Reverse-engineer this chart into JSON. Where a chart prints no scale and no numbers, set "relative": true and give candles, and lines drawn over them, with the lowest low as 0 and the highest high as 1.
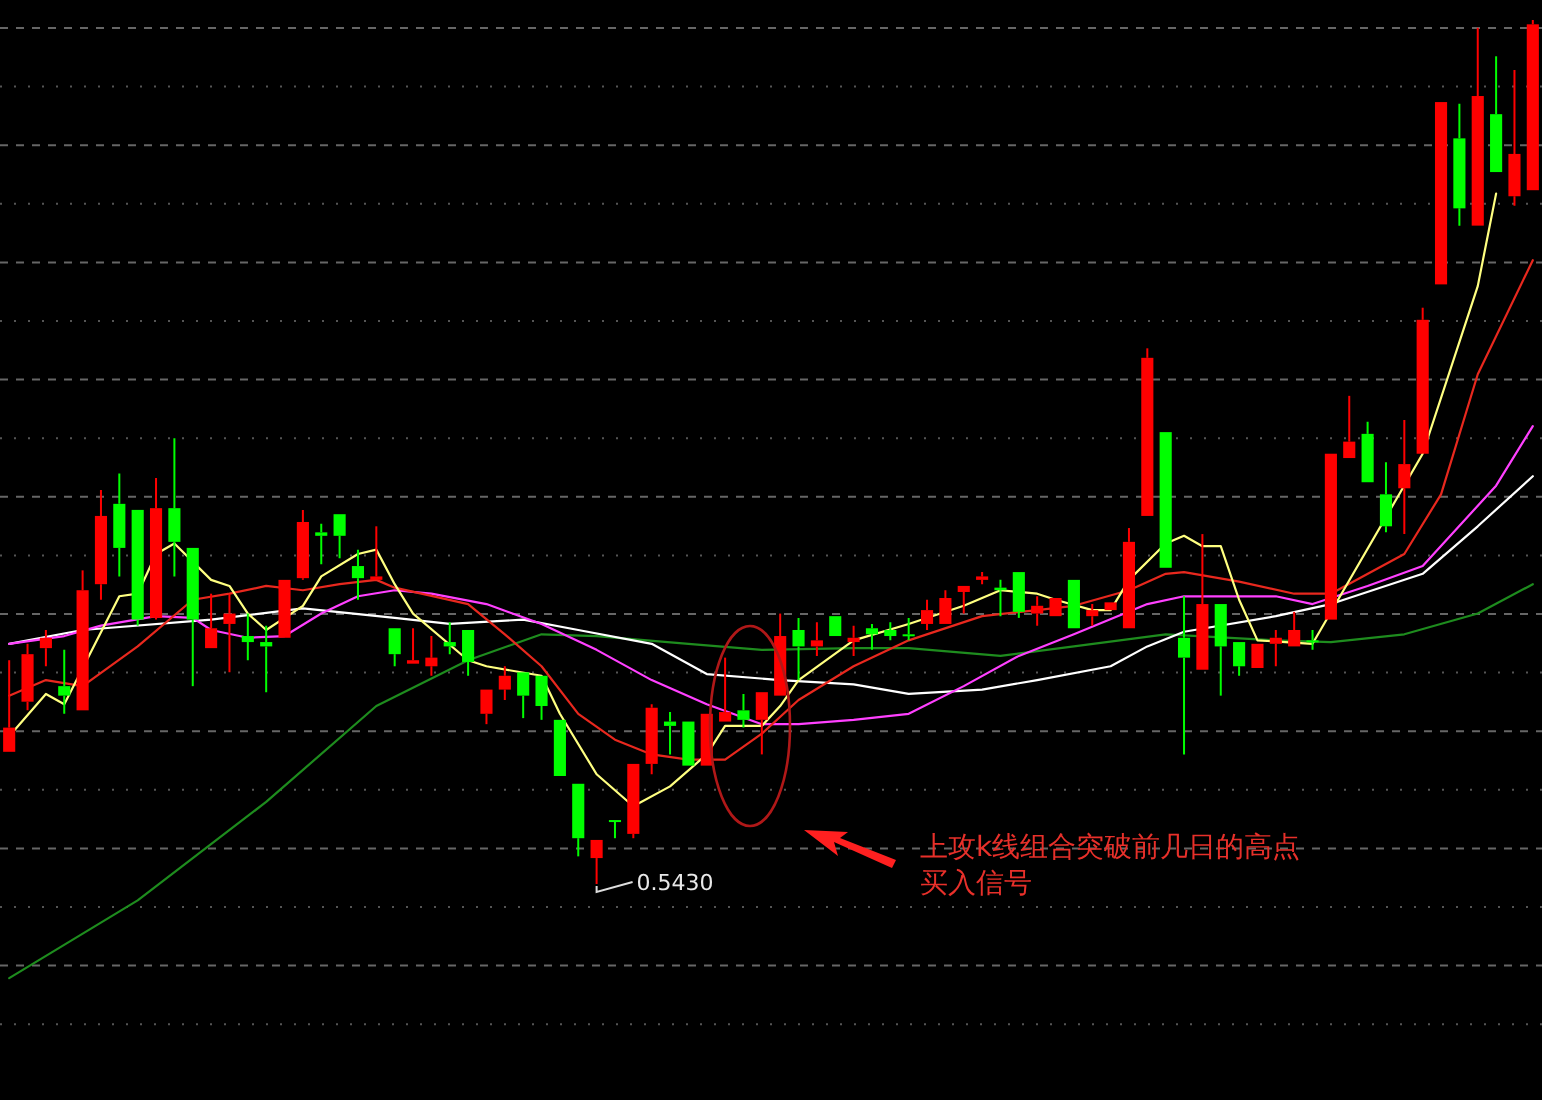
{
  "chart_data": {
    "type": "candlestick",
    "relative": true,
    "grid": true,
    "categories": [
      null,
      null,
      null,
      null,
      null,
      null,
      null,
      null,
      null,
      null,
      null,
      null,
      null,
      null,
      null,
      null,
      null,
      null,
      null,
      null,
      null,
      null,
      null,
      null,
      null,
      null,
      null,
      null,
      null,
      null,
      null,
      null,
      null,
      null,
      null,
      null,
      null,
      null,
      null,
      null,
      null,
      null,
      null,
      null,
      null,
      null,
      null,
      null,
      null,
      null,
      null,
      null,
      null,
      null,
      null,
      null,
      null,
      null,
      null,
      null,
      null,
      null,
      null,
      null,
      null,
      null,
      null,
      null,
      null,
      null,
      null,
      null,
      null,
      null,
      null,
      null,
      null,
      null,
      null,
      null,
      null,
      null,
      null,
      null
    ],
    "ohlc": [
      [
        0.153,
        0.259,
        0.153,
        0.181
      ],
      [
        0.211,
        0.278,
        0.201,
        0.266
      ],
      [
        0.273,
        0.294,
        0.252,
        0.285
      ],
      [
        0.229,
        0.271,
        0.197,
        0.218
      ],
      [
        0.201,
        0.363,
        0.201,
        0.34
      ],
      [
        0.347,
        0.456,
        0.329,
        0.426
      ],
      [
        0.44,
        0.475,
        0.356,
        0.389
      ],
      [
        0.433,
        0.433,
        0.299,
        0.306
      ],
      [
        0.308,
        0.47,
        0.306,
        0.435
      ],
      [
        0.435,
        0.516,
        0.356,
        0.396
      ],
      [
        0.389,
        0.389,
        0.229,
        0.306
      ],
      [
        0.273,
        0.336,
        0.273,
        0.296
      ],
      [
        0.301,
        0.336,
        0.245,
        0.313
      ],
      [
        0.287,
        0.313,
        0.259,
        0.28
      ],
      [
        0.28,
        0.299,
        0.222,
        0.275
      ],
      [
        0.285,
        0.352,
        0.285,
        0.352
      ],
      [
        0.354,
        0.433,
        0.352,
        0.419
      ],
      [
        0.407,
        0.417,
        0.37,
        0.403
      ],
      [
        0.428,
        0.428,
        0.377,
        0.403
      ],
      [
        0.368,
        0.387,
        0.329,
        0.354
      ],
      [
        0.352,
        0.414,
        0.352,
        0.356
      ],
      [
        0.296,
        0.296,
        0.252,
        0.266
      ],
      [
        0.255,
        0.296,
        0.255,
        0.259
      ],
      [
        0.252,
        0.287,
        0.241,
        0.262
      ],
      [
        0.28,
        0.303,
        0.266,
        0.275
      ],
      [
        0.294,
        0.294,
        0.241,
        0.257
      ],
      [
        0.197,
        0.225,
        0.185,
        0.225
      ],
      [
        0.225,
        0.252,
        0.213,
        0.241
      ],
      [
        0.245,
        0.245,
        0.192,
        0.218
      ],
      [
        0.241,
        0.241,
        0.19,
        0.206
      ],
      [
        0.19,
        0.19,
        0.125,
        0.125
      ],
      [
        0.116,
        0.116,
        0.032,
        0.053
      ],
      [
        0.03,
        0.051,
        0,
        0.051
      ],
      [
        0.074,
        0.074,
        0.053,
        0.072
      ],
      [
        0.058,
        0.139,
        0.053,
        0.139
      ],
      [
        0.139,
        0.208,
        0.127,
        0.204
      ],
      [
        0.188,
        0.199,
        0.15,
        0.183
      ],
      [
        0.188,
        0.188,
        0.137,
        0.137
      ],
      [
        0.137,
        0.197,
        0.137,
        0.197
      ],
      [
        0.188,
        0.262,
        0.188,
        0.199
      ],
      [
        0.201,
        0.22,
        0.181,
        0.19
      ],
      [
        0.19,
        0.222,
        0.15,
        0.222
      ],
      [
        0.218,
        0.313,
        0.218,
        0.287
      ],
      [
        0.294,
        0.308,
        0.236,
        0.275
      ],
      [
        0.275,
        0.303,
        0.264,
        0.282
      ],
      [
        0.31,
        0.31,
        0.287,
        0.287
      ],
      [
        0.28,
        0.299,
        0.264,
        0.285
      ],
      [
        0.296,
        0.301,
        0.271,
        0.289
      ],
      [
        0.294,
        0.303,
        0.282,
        0.287
      ],
      [
        0.289,
        0.308,
        0.282,
        0.287
      ],
      [
        0.301,
        0.329,
        0.294,
        0.317
      ],
      [
        0.301,
        0.34,
        0.301,
        0.331
      ],
      [
        0.338,
        0.345,
        0.313,
        0.345
      ],
      [
        0.352,
        0.361,
        0.347,
        0.356
      ],
      [
        0.343,
        0.352,
        0.31,
        0.34
      ],
      [
        0.361,
        0.361,
        0.308,
        0.315
      ],
      [
        0.313,
        0.333,
        0.299,
        0.322
      ],
      [
        0.31,
        0.331,
        0.31,
        0.331
      ],
      [
        0.352,
        0.352,
        0.296,
        0.296
      ],
      [
        0.31,
        0.324,
        0.299,
        0.317
      ],
      [
        0.317,
        0.326,
        0.317,
        0.326
      ],
      [
        0.296,
        0.412,
        0.296,
        0.396
      ],
      [
        0.426,
        0.62,
        0.426,
        0.609
      ],
      [
        0.523,
        0.523,
        0.366,
        0.366
      ],
      [
        0.285,
        0.333,
        0.15,
        0.262
      ],
      [
        0.248,
        0.405,
        0.248,
        0.324
      ],
      [
        0.324,
        0.324,
        0.218,
        0.275
      ],
      [
        0.28,
        0.28,
        0.241,
        0.252
      ],
      [
        0.25,
        0.278,
        0.25,
        0.278
      ],
      [
        0.278,
        0.294,
        0.252,
        0.285
      ],
      [
        0.275,
        0.315,
        0.275,
        0.294
      ],
      [
        0.282,
        0.294,
        0.271,
        0.28
      ],
      [
        0.306,
        0.498,
        0.306,
        0.498
      ],
      [
        0.493,
        0.565,
        0.493,
        0.512
      ],
      [
        0.521,
        0.535,
        0.465,
        0.465
      ],
      [
        0.451,
        0.488,
        0.407,
        0.414
      ],
      [
        0.458,
        0.537,
        0.405,
        0.486
      ],
      [
        0.498,
        0.667,
        0.498,
        0.653
      ],
      [
        0.694,
        0.905,
        0.694,
        0.905
      ],
      [
        0.863,
        0.903,
        0.762,
        0.782
      ],
      [
        0.762,
        0.991,
        0.762,
        0.912
      ],
      [
        0.891,
        0.958,
        0.824,
        0.824
      ],
      [
        0.796,
        0.942,
        0.785,
        0.845
      ],
      [
        0.803,
        1,
        0.803,
        0.995
      ]
    ],
    "colors": [
      "#ff0000",
      "#ff0000",
      "#ff0000",
      "#00ff00",
      "#ff0000",
      "#ff0000",
      "#00ff00",
      "#00ff00",
      "#ff0000",
      "#00ff00",
      "#00ff00",
      "#ff0000",
      "#ff0000",
      "#00ff00",
      "#00ff00",
      "#ff0000",
      "#ff0000",
      "#00ff00",
      "#00ff00",
      "#00ff00",
      "#ff0000",
      "#00ff00",
      "#ff0000",
      "#ff0000",
      "#00ff00",
      "#00ff00",
      "#ff0000",
      "#ff0000",
      "#00ff00",
      "#00ff00",
      "#00ff00",
      "#00ff00",
      "#ff0000",
      "#00ff00",
      "#ff0000",
      "#ff0000",
      "#00ff00",
      "#00ff00",
      "#ff0000",
      "#ff0000",
      "#00ff00",
      "#ff0000",
      "#ff0000",
      "#00ff00",
      "#ff0000",
      "#00ff00",
      "#ff0000",
      "#00ff00",
      "#00ff00",
      "#00ff00",
      "#ff0000",
      "#ff0000",
      "#ff0000",
      "#ff0000",
      "#00ff00",
      "#00ff00",
      "#ff0000",
      "#ff0000",
      "#00ff00",
      "#ff0000",
      "#ff0000",
      "#ff0000",
      "#ff0000",
      "#00ff00",
      "#00ff00",
      "#ff0000",
      "#00ff00",
      "#00ff00",
      "#ff0000",
      "#ff0000",
      "#ff0000",
      "#00ff00",
      "#ff0000",
      "#ff0000",
      "#00ff00",
      "#00ff00",
      "#ff0000",
      "#ff0000",
      "#ff0000",
      "#00ff00",
      "#ff0000",
      "#00ff00",
      "#ff0000",
      "#ff0000"
    ],
    "series": [
      {
        "type": "line",
        "color": "#1e8c1e",
        "values": [
          -0.109,
          null,
          null,
          null,
          null,
          null,
          null,
          -0.019,
          null,
          null,
          null,
          null,
          null,
          null,
          0.095,
          null,
          null,
          null,
          null,
          null,
          0.206,
          null,
          null,
          null,
          null,
          0.259,
          null,
          null,
          null,
          0.289,
          null,
          null,
          0.287,
          null,
          null,
          null,
          null,
          0.278,
          null,
          null,
          null,
          0.271,
          null,
          null,
          null,
          null,
          0.273,
          null,
          null,
          0.273,
          null,
          null,
          null,
          null,
          0.264,
          null,
          null,
          null,
          0.275,
          null,
          null,
          null,
          null,
          0.289,
          null,
          null,
          null,
          null,
          null,
          0.282,
          null,
          null,
          0.28,
          null,
          null,
          null,
          0.289,
          null,
          null,
          null,
          0.313,
          null,
          null,
          0.347
        ]
      },
      {
        "type": "line",
        "color": "#ffffff",
        "values": [
          0.278,
          null,
          null,
          null,
          0.294,
          null,
          null,
          null,
          null,
          null,
          null,
          0.306,
          null,
          null,
          null,
          null,
          0.319,
          null,
          null,
          null,
          null,
          0.308,
          null,
          null,
          0.301,
          null,
          null,
          null,
          0.306,
          null,
          null,
          0.294,
          null,
          null,
          null,
          0.278,
          null,
          null,
          0.243,
          null,
          null,
          null,
          0.236,
          null,
          null,
          null,
          0.231,
          null,
          null,
          0.22,
          null,
          null,
          null,
          0.225,
          null,
          null,
          0.236,
          null,
          null,
          null,
          0.252,
          null,
          0.275,
          null,
          0.292,
          null,
          null,
          null,
          null,
          0.31,
          null,
          null,
          0.324,
          null,
          null,
          null,
          null,
          0.359,
          null,
          null,
          0.414,
          null,
          null,
          0.472
        ]
      },
      {
        "type": "line",
        "color": "#ff40ff",
        "values": [
          0.278,
          null,
          null,
          0.287,
          null,
          0.299,
          null,
          null,
          0.31,
          null,
          0.308,
          0.294,
          null,
          0.285,
          null,
          0.287,
          null,
          0.313,
          null,
          0.333,
          null,
          0.34,
          null,
          0.336,
          null,
          null,
          0.324,
          null,
          null,
          0.301,
          null,
          null,
          0.271,
          null,
          null,
          0.236,
          null,
          null,
          0.208,
          null,
          null,
          0.185,
          null,
          0.185,
          null,
          null,
          0.19,
          null,
          null,
          0.197,
          null,
          null,
          0.229,
          null,
          null,
          0.264,
          null,
          null,
          0.289,
          null,
          null,
          null,
          0.324,
          null,
          0.333,
          null,
          null,
          null,
          null,
          0.333,
          null,
          0.324,
          null,
          null,
          0.345,
          null,
          null,
          0.368,
          null,
          null,
          null,
          0.461,
          null,
          0.53
        ]
      },
      {
        "type": "line",
        "color": "#e8281e",
        "values": [
          0.218,
          null,
          0.236,
          null,
          0.229,
          null,
          null,
          0.275,
          null,
          null,
          0.329,
          null,
          0.336,
          null,
          0.345,
          null,
          0.34,
          null,
          0.347,
          null,
          0.352,
          0.343,
          null,
          null,
          null,
          0.324,
          null,
          0.289,
          null,
          0.252,
          null,
          0.197,
          null,
          0.167,
          null,
          0.15,
          null,
          0.144,
          null,
          0.144,
          null,
          0.174,
          null,
          0.213,
          null,
          null,
          0.252,
          null,
          null,
          0.282,
          null,
          null,
          null,
          0.31,
          null,
          null,
          0.317,
          null,
          0.322,
          null,
          null,
          0.34,
          null,
          0.359,
          0.361,
          null,
          null,
          0.35,
          null,
          null,
          0.336,
          null,
          0.336,
          null,
          null,
          null,
          0.382,
          null,
          0.451,
          null,
          0.59,
          null,
          null,
          0.722
        ]
      },
      {
        "type": "line",
        "color": "#ffff80",
        "values": [
          0.171,
          null,
          0.22,
          0.208,
          null,
          null,
          0.333,
          0.336,
          0.382,
          0.394,
          null,
          0.352,
          0.345,
          0.313,
          0.294,
          null,
          0.322,
          0.356,
          null,
          0.382,
          0.387,
          0.347,
          0.313,
          null,
          null,
          0.259,
          0.252,
          null,
          null,
          0.241,
          0.197,
          null,
          0.127,
          null,
          0.09,
          null,
          0.113,
          null,
          0.15,
          0.183,
          null,
          0.183,
          0.206,
          0.236,
          null,
          null,
          0.282,
          null,
          null,
          0.301,
          null,
          null,
          0.322,
          null,
          0.34,
          null,
          0.336,
          0.329,
          null,
          0.317,
          0.317,
          0.352,
          null,
          0.394,
          0.403,
          0.391,
          0.391,
          0.329,
          0.282,
          null,
          null,
          0.278,
          null,
          null,
          null,
          null,
          null,
          0.498,
          null,
          null,
          0.692,
          0.799,
          null,
          null
        ]
      }
    ],
    "annotations": [
      "0.5430",
      "上攻k线组合突破前几日的高点",
      "买入信号"
    ]
  }
}
